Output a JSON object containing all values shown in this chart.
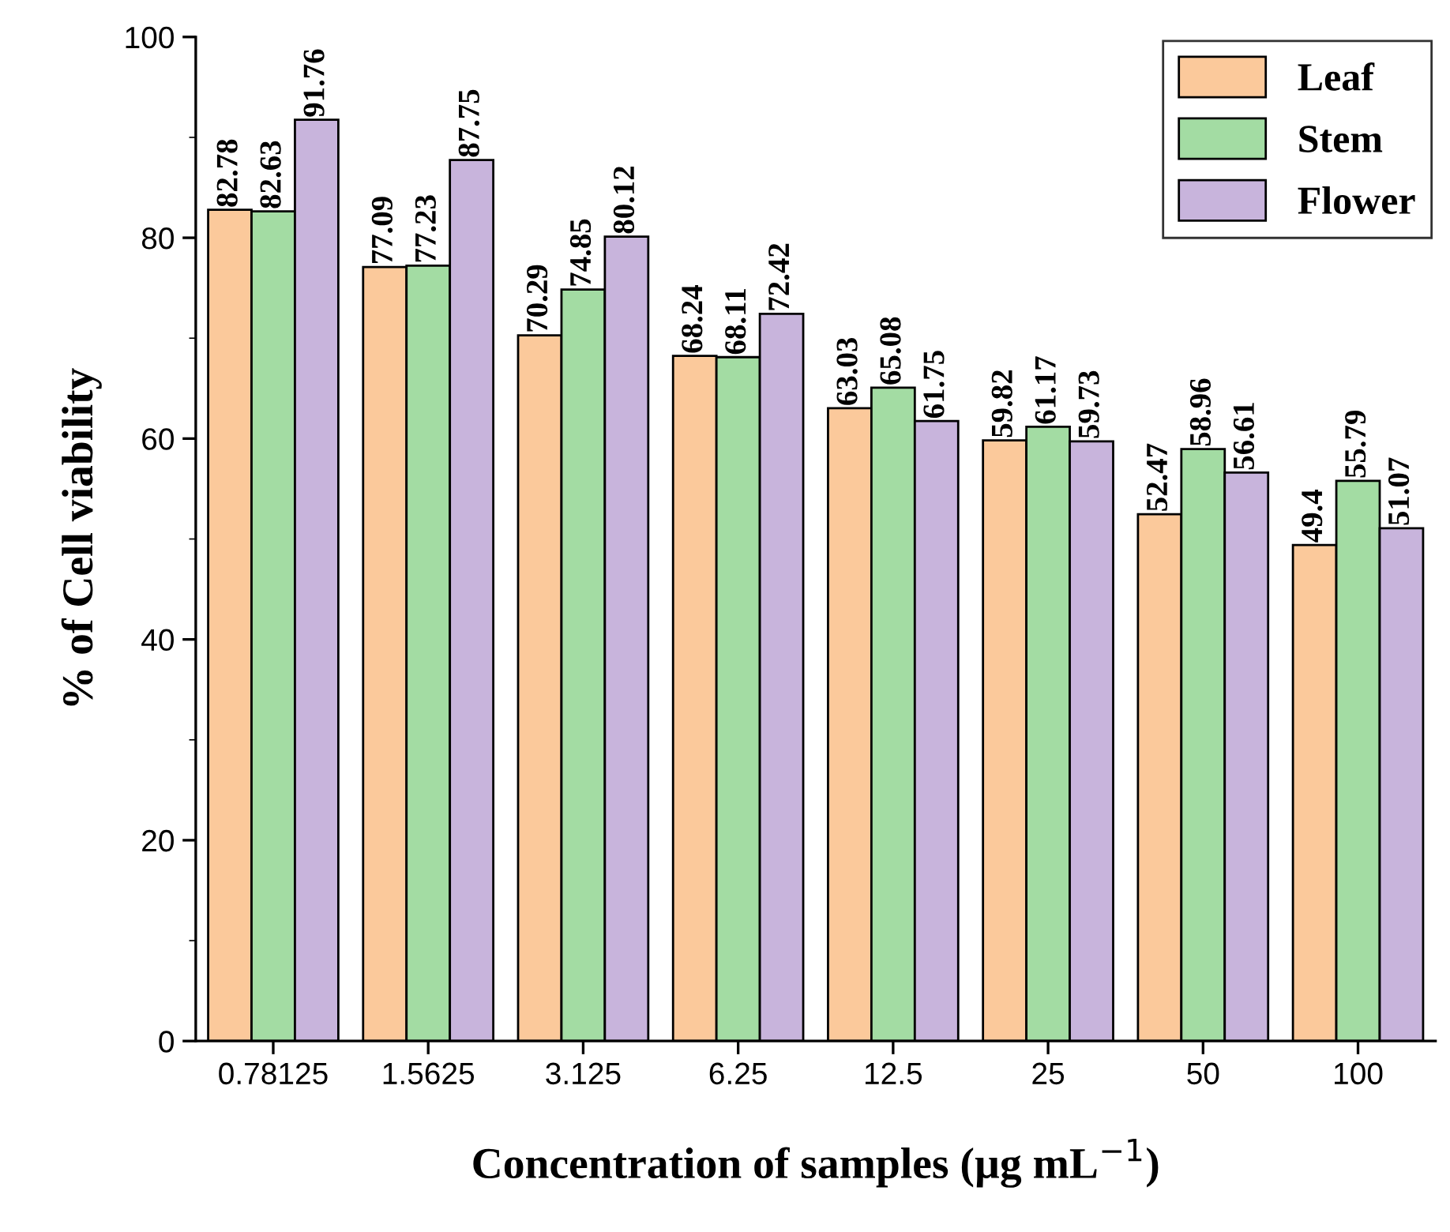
{
  "chart_data": {
    "type": "bar",
    "xlabel": "Concentration of samples (µg mL$^{−1}$)",
    "ylabel": "% of Cell viability",
    "categories": [
      "0.78125",
      "1.5625",
      "3.125",
      "6.25",
      "12.5",
      "25",
      "50",
      "100"
    ],
    "series": [
      {
        "name": "Leaf",
        "color": "#fbc99b",
        "values": [
          82.78,
          77.09,
          70.29,
          68.24,
          63.03,
          59.82,
          52.47,
          49.4
        ]
      },
      {
        "name": "Stem",
        "color": "#a3dca3",
        "values": [
          82.63,
          77.23,
          74.85,
          68.11,
          65.08,
          61.17,
          58.96,
          55.79
        ]
      },
      {
        "name": "Flower",
        "color": "#c8b4dc",
        "values": [
          91.76,
          87.75,
          80.12,
          72.42,
          61.75,
          59.73,
          56.61,
          51.07
        ]
      }
    ],
    "ylim": [
      0,
      100
    ],
    "yticks": [
      0,
      20,
      40,
      60,
      80,
      100
    ],
    "grid": false,
    "legend": "top right",
    "data_labels": true
  }
}
